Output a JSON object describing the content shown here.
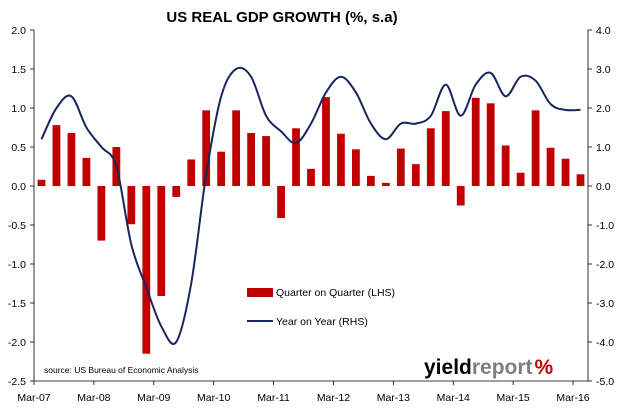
{
  "chart_data": {
    "type": "bar",
    "title": "US REAL GDP GROWTH (%, s.a)",
    "x_tick_labels": [
      "Mar-07",
      "Mar-08",
      "Mar-09",
      "Mar-10",
      "Mar-11",
      "Mar-12",
      "Mar-13",
      "Mar-14",
      "Mar-15",
      "Mar-16"
    ],
    "y_left": {
      "lim": [
        -2.5,
        2.0
      ],
      "ticks": [
        "2.0",
        "1.5",
        "1.0",
        "0.5",
        "0.0",
        "-0.5",
        "-1.0",
        "-1.5",
        "-2.0",
        "-2.5"
      ]
    },
    "y_right": {
      "lim": [
        -5.0,
        4.0
      ],
      "ticks": [
        "4.0",
        "3.0",
        "2.0",
        "1.0",
        "0.0",
        "-1.0",
        "-2.0",
        "-3.0",
        "-4.0",
        "-5.0"
      ]
    },
    "categories": [
      "Mar-07",
      "Jun-07",
      "Sep-07",
      "Dec-07",
      "Mar-08",
      "Jun-08",
      "Sep-08",
      "Dec-08",
      "Mar-09",
      "Jun-09",
      "Sep-09",
      "Dec-09",
      "Mar-10",
      "Jun-10",
      "Sep-10",
      "Dec-10",
      "Mar-11",
      "Jun-11",
      "Sep-11",
      "Dec-11",
      "Mar-12",
      "Jun-12",
      "Sep-12",
      "Dec-12",
      "Mar-13",
      "Jun-13",
      "Sep-13",
      "Dec-13",
      "Mar-14",
      "Jun-14",
      "Sep-14",
      "Dec-14",
      "Mar-15",
      "Jun-15",
      "Sep-15",
      "Dec-15",
      "Mar-16"
    ],
    "series": [
      {
        "name": "Quarter on Quarter (LHS)",
        "axis": "left",
        "kind": "bar",
        "values": [
          0.08,
          0.78,
          0.68,
          0.36,
          -0.7,
          0.5,
          -0.49,
          -2.15,
          -1.41,
          -0.14,
          0.34,
          0.97,
          0.44,
          0.97,
          0.68,
          0.64,
          -0.41,
          0.74,
          0.22,
          1.14,
          0.67,
          0.47,
          0.13,
          0.04,
          0.48,
          0.28,
          0.74,
          0.96,
          -0.25,
          1.13,
          1.06,
          0.52,
          0.17,
          0.97,
          0.49,
          0.35,
          0.15
        ]
      },
      {
        "name": "Year on Year (RHS)",
        "axis": "right",
        "kind": "line",
        "values": [
          1.2,
          2.0,
          2.3,
          1.5,
          1.0,
          0.5,
          -1.5,
          -2.6,
          -3.6,
          -4.0,
          -2.5,
          0.3,
          2.3,
          3.0,
          2.8,
          1.8,
          1.4,
          1.1,
          1.6,
          2.4,
          2.8,
          2.4,
          1.6,
          1.2,
          1.6,
          1.6,
          1.8,
          2.6,
          1.8,
          2.6,
          2.9,
          2.3,
          2.8,
          2.7,
          2.1,
          1.95,
          1.95
        ]
      }
    ],
    "colors": {
      "bars": "#c00000",
      "line": "#17275e"
    },
    "grid": false,
    "legend_position": "bottom-center",
    "annotations": {
      "source": "source: US Bureau of Economic Analysis"
    }
  },
  "branding": {
    "logo_word_a": "yield",
    "logo_word_b": "report",
    "logo_mark": "%",
    "logo_colors": {
      "a": "#000000",
      "b": "#7f7f7f",
      "mark": "#c00000"
    }
  }
}
